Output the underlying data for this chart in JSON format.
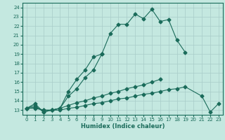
{
  "xlabel": "Humidex (Indice chaleur)",
  "bg_color": "#c4e8e0",
  "line_color": "#1a6b5a",
  "grid_color": "#a8ccc8",
  "xlim": [
    -0.5,
    23.5
  ],
  "ylim": [
    12.5,
    24.5
  ],
  "yticks": [
    13,
    14,
    15,
    16,
    17,
    18,
    19,
    20,
    21,
    22,
    23,
    24
  ],
  "xticks": [
    0,
    1,
    2,
    3,
    4,
    5,
    6,
    7,
    8,
    9,
    10,
    11,
    12,
    13,
    14,
    15,
    16,
    17,
    18,
    19,
    20,
    21,
    22,
    23
  ],
  "lines": [
    {
      "x": [
        0,
        1,
        2,
        3,
        4,
        5,
        6,
        7,
        8,
        9,
        10,
        11,
        12,
        13,
        14,
        15,
        16,
        17,
        18,
        19
      ],
      "y": [
        13.2,
        13.7,
        12.8,
        13.0,
        13.2,
        15.0,
        16.3,
        17.3,
        18.7,
        19.0,
        21.2,
        22.2,
        22.2,
        23.3,
        22.8,
        23.8,
        22.5,
        22.7,
        20.5,
        19.2
      ]
    },
    {
      "x": [
        0,
        1,
        2,
        3,
        4,
        5,
        6,
        7,
        8,
        9
      ],
      "y": [
        13.2,
        13.5,
        12.8,
        13.0,
        13.2,
        14.5,
        15.3,
        16.5,
        17.3,
        19.0
      ]
    },
    {
      "x": [
        0,
        1,
        2,
        3,
        4,
        5,
        6,
        7,
        8,
        9,
        10,
        11,
        12,
        13,
        14,
        15,
        16
      ],
      "y": [
        13.2,
        13.3,
        13.0,
        13.0,
        13.2,
        13.5,
        13.8,
        14.0,
        14.3,
        14.5,
        14.8,
        15.0,
        15.3,
        15.5,
        15.7,
        16.0,
        16.3
      ]
    },
    {
      "x": [
        0,
        1,
        2,
        3,
        4,
        5,
        6,
        7,
        8,
        9,
        10,
        11,
        12,
        13,
        14,
        15,
        16,
        17,
        18,
        19,
        21,
        22,
        23
      ],
      "y": [
        13.2,
        13.2,
        13.0,
        13.0,
        13.0,
        13.2,
        13.3,
        13.5,
        13.7,
        13.8,
        14.0,
        14.2,
        14.3,
        14.5,
        14.7,
        14.8,
        15.0,
        15.2,
        15.3,
        15.5,
        14.5,
        12.8,
        13.7
      ]
    }
  ]
}
